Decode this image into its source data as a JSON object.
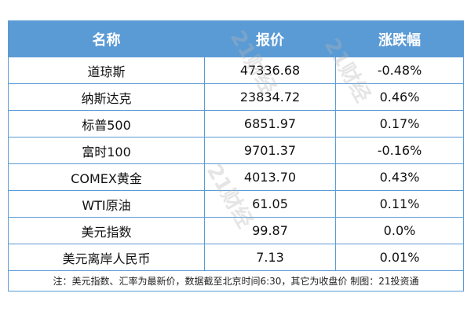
{
  "chart_data": {
    "type": "table",
    "columns": [
      "名称",
      "报价",
      "涨跌幅"
    ],
    "rows": [
      [
        "道琼斯",
        "47336.68",
        "-0.48%"
      ],
      [
        "纳斯达克",
        "23834.72",
        "0.46%"
      ],
      [
        "标普500",
        "6851.97",
        "0.17%"
      ],
      [
        "富时100",
        "9701.37",
        "-0.16%"
      ],
      [
        "COMEX黄金",
        "4013.70",
        "0.43%"
      ],
      [
        "WTI原油",
        "61.05",
        "0.11%"
      ],
      [
        "美元指数",
        "99.87",
        "0.0%"
      ],
      [
        "美元离岸人民币",
        "7.13",
        "0.01%"
      ]
    ],
    "note": "注：美元指数、汇率为最新价，数据截至北京时间6:30，其它为收盘价 制图：21投资通",
    "header_color": "#5b9bd5"
  },
  "watermark": "21财经"
}
